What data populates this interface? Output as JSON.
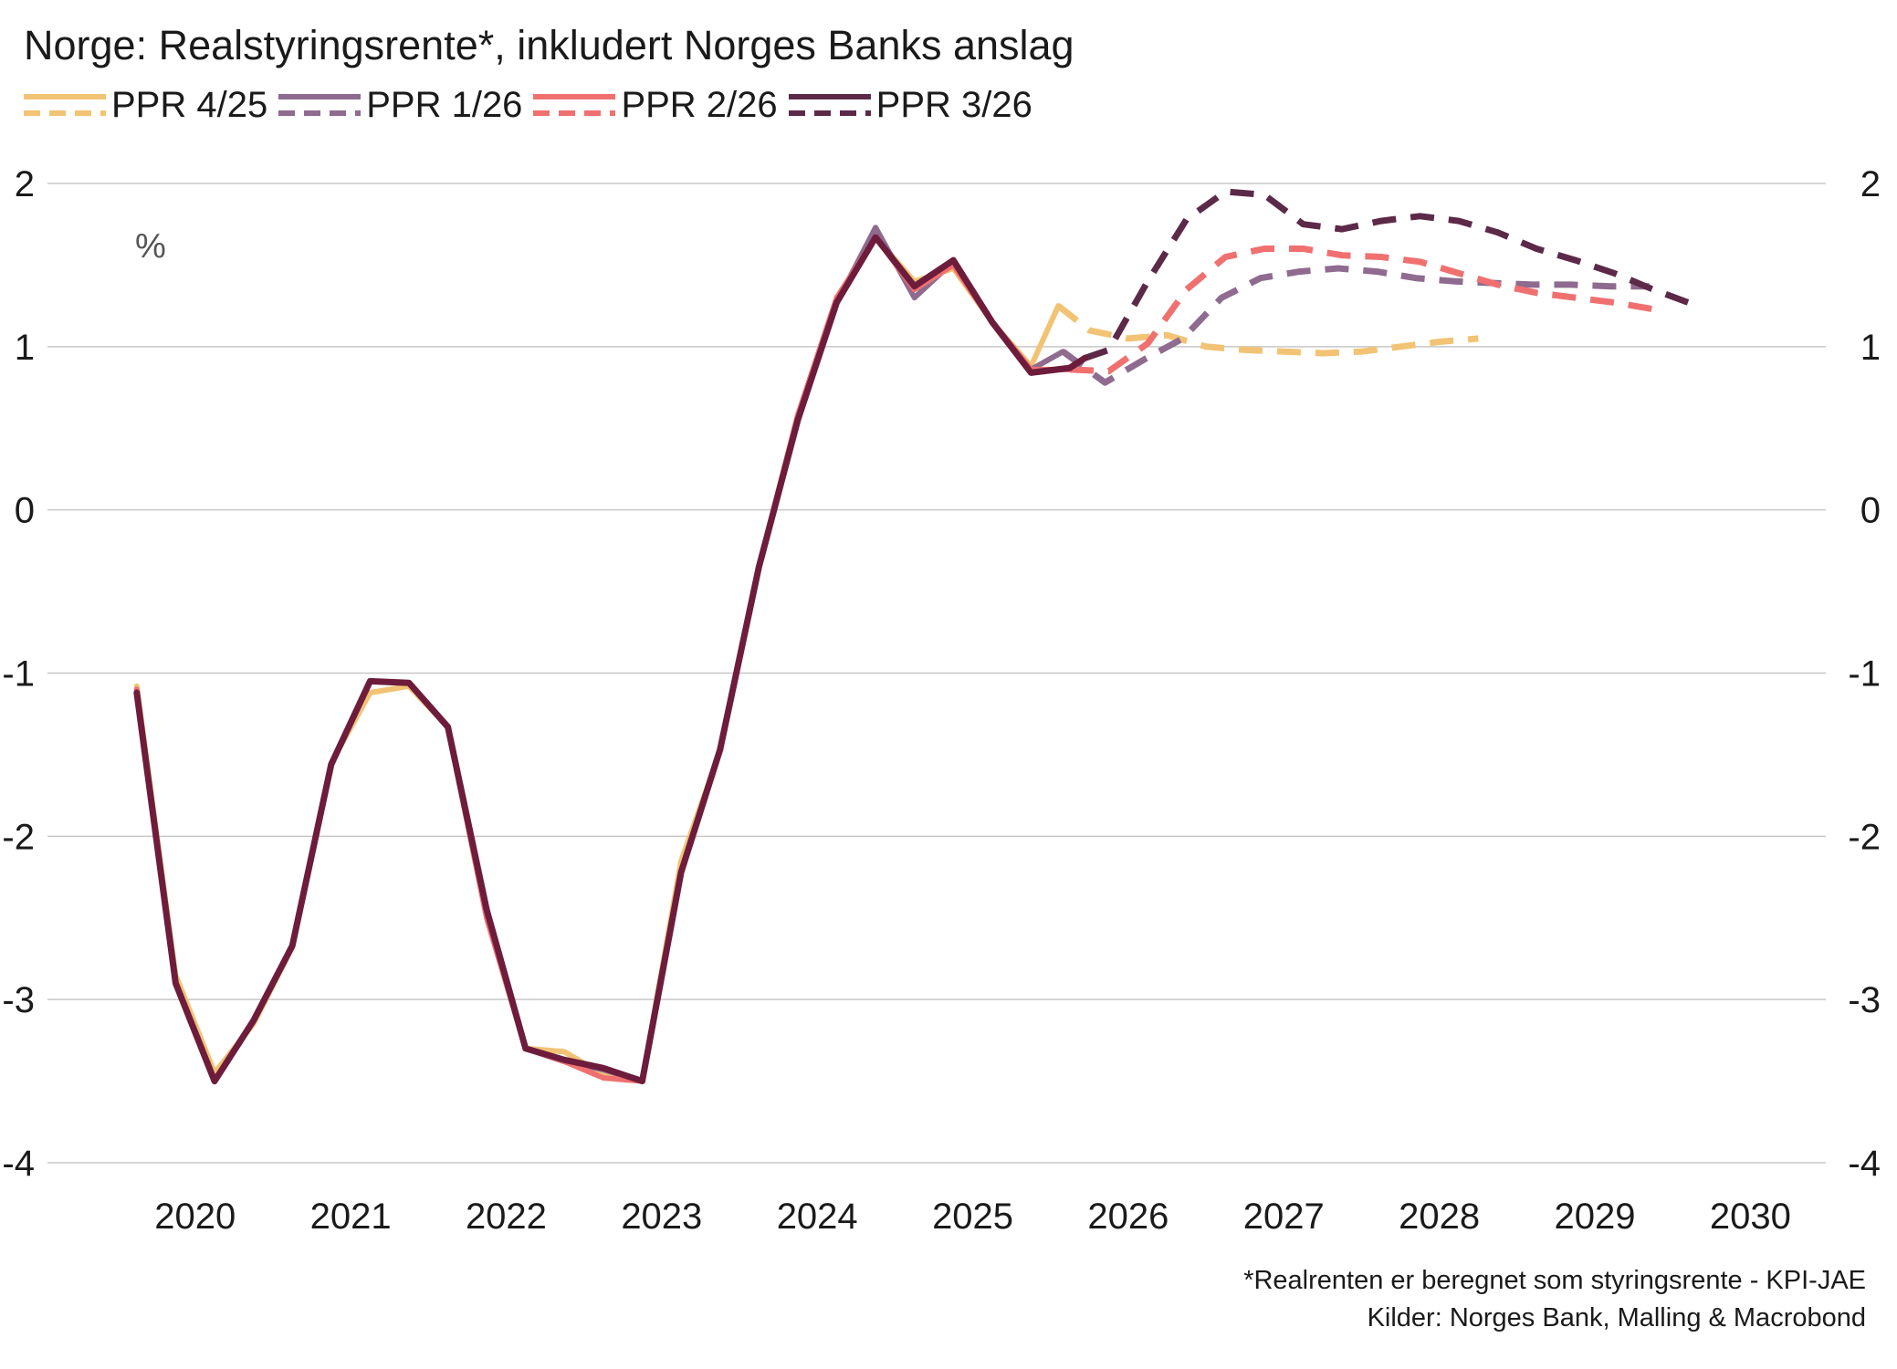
{
  "chart_data": {
    "type": "line",
    "title": "Norge: Realstyringsrente*, inkludert Norges Banks anslag",
    "unit_label": "%",
    "ylim": [
      -4,
      2
    ],
    "yticks": [
      "2",
      "1",
      "0",
      "-1",
      "-2",
      "-3",
      "-4"
    ],
    "ytick_values": [
      2,
      1,
      0,
      -1,
      -2,
      -3,
      -4
    ],
    "xlim": [
      2019.45,
      2030.25
    ],
    "xticks": [
      "2020",
      "2021",
      "2022",
      "2023",
      "2024",
      "2025",
      "2026",
      "2027",
      "2028",
      "2029",
      "2030"
    ],
    "xtick_values": [
      2020,
      2021,
      2022,
      2023,
      2024,
      2025,
      2026,
      2027,
      2028,
      2029,
      2030
    ],
    "grid": true,
    "legend_position": "top-left",
    "series": [
      {
        "name": "PPR 4/25",
        "color": "#F2C374",
        "actual": [
          [
            2019.625,
            -1.08
          ],
          [
            2019.875,
            -2.85
          ],
          [
            2020.125,
            -3.45
          ],
          [
            2020.375,
            -3.15
          ],
          [
            2020.625,
            -2.68
          ],
          [
            2020.875,
            -1.55
          ],
          [
            2021.125,
            -1.12
          ],
          [
            2021.375,
            -1.08
          ],
          [
            2021.625,
            -1.33
          ],
          [
            2021.875,
            -2.5
          ],
          [
            2022.125,
            -3.3
          ],
          [
            2022.375,
            -3.32
          ],
          [
            2022.625,
            -3.46
          ],
          [
            2022.875,
            -3.5
          ],
          [
            2023.125,
            -2.15
          ],
          [
            2023.375,
            -1.48
          ],
          [
            2023.625,
            -0.35
          ],
          [
            2023.875,
            0.58
          ],
          [
            2024.125,
            1.28
          ],
          [
            2024.375,
            1.67
          ],
          [
            2024.625,
            1.4
          ],
          [
            2024.875,
            1.48
          ],
          [
            2025.125,
            1.15
          ],
          [
            2025.375,
            0.88
          ],
          [
            2025.55,
            1.25
          ]
        ],
        "forecast": [
          [
            2025.55,
            1.25
          ],
          [
            2025.75,
            1.1
          ],
          [
            2026.0,
            1.05
          ],
          [
            2026.25,
            1.07
          ],
          [
            2026.5,
            1.0
          ],
          [
            2026.75,
            0.98
          ],
          [
            2027.0,
            0.97
          ],
          [
            2027.25,
            0.96
          ],
          [
            2027.5,
            0.97
          ],
          [
            2027.75,
            1.0
          ],
          [
            2028.0,
            1.03
          ],
          [
            2028.25,
            1.05
          ]
        ]
      },
      {
        "name": "PPR 1/26",
        "color": "#8E6B8F",
        "actual": [
          [
            2019.625,
            -1.1
          ],
          [
            2019.875,
            -2.9
          ],
          [
            2020.125,
            -3.5
          ],
          [
            2020.375,
            -3.13
          ],
          [
            2020.625,
            -2.67
          ],
          [
            2020.875,
            -1.56
          ],
          [
            2021.125,
            -1.05
          ],
          [
            2021.375,
            -1.06
          ],
          [
            2021.625,
            -1.33
          ],
          [
            2021.875,
            -2.45
          ],
          [
            2022.125,
            -3.3
          ],
          [
            2022.375,
            -3.38
          ],
          [
            2022.625,
            -3.43
          ],
          [
            2022.875,
            -3.5
          ],
          [
            2023.125,
            -2.22
          ],
          [
            2023.375,
            -1.47
          ],
          [
            2023.625,
            -0.35
          ],
          [
            2023.875,
            0.55
          ],
          [
            2024.125,
            1.27
          ],
          [
            2024.375,
            1.73
          ],
          [
            2024.625,
            1.3
          ],
          [
            2024.875,
            1.52
          ],
          [
            2025.125,
            1.15
          ],
          [
            2025.375,
            0.86
          ],
          [
            2025.58,
            0.97
          ]
        ],
        "forecast": [
          [
            2025.58,
            0.97
          ],
          [
            2025.85,
            0.78
          ],
          [
            2026.1,
            0.92
          ],
          [
            2026.35,
            1.05
          ],
          [
            2026.6,
            1.3
          ],
          [
            2026.85,
            1.42
          ],
          [
            2027.1,
            1.46
          ],
          [
            2027.35,
            1.48
          ],
          [
            2027.6,
            1.46
          ],
          [
            2027.85,
            1.42
          ],
          [
            2028.1,
            1.4
          ],
          [
            2028.35,
            1.39
          ],
          [
            2028.6,
            1.38
          ],
          [
            2028.85,
            1.38
          ],
          [
            2029.1,
            1.37
          ],
          [
            2029.35,
            1.37
          ]
        ]
      },
      {
        "name": "PPR 2/26",
        "color": "#F07070",
        "actual": [
          [
            2019.625,
            -1.1
          ],
          [
            2019.875,
            -2.9
          ],
          [
            2020.125,
            -3.5
          ],
          [
            2020.375,
            -3.13
          ],
          [
            2020.625,
            -2.67
          ],
          [
            2020.875,
            -1.56
          ],
          [
            2021.125,
            -1.05
          ],
          [
            2021.375,
            -1.06
          ],
          [
            2021.625,
            -1.33
          ],
          [
            2021.875,
            -2.5
          ],
          [
            2022.125,
            -3.3
          ],
          [
            2022.375,
            -3.38
          ],
          [
            2022.625,
            -3.48
          ],
          [
            2022.875,
            -3.5
          ],
          [
            2023.125,
            -2.22
          ],
          [
            2023.375,
            -1.47
          ],
          [
            2023.625,
            -0.35
          ],
          [
            2023.875,
            0.58
          ],
          [
            2024.125,
            1.3
          ],
          [
            2024.375,
            1.67
          ],
          [
            2024.625,
            1.35
          ],
          [
            2024.875,
            1.5
          ],
          [
            2025.125,
            1.15
          ],
          [
            2025.375,
            0.86
          ],
          [
            2025.625,
            0.86
          ]
        ],
        "forecast": [
          [
            2025.625,
            0.86
          ],
          [
            2025.875,
            0.85
          ],
          [
            2026.125,
            1.02
          ],
          [
            2026.375,
            1.35
          ],
          [
            2026.625,
            1.55
          ],
          [
            2026.875,
            1.6
          ],
          [
            2027.125,
            1.6
          ],
          [
            2027.375,
            1.56
          ],
          [
            2027.625,
            1.55
          ],
          [
            2027.875,
            1.52
          ],
          [
            2028.125,
            1.45
          ],
          [
            2028.375,
            1.38
          ],
          [
            2028.625,
            1.33
          ],
          [
            2028.875,
            1.3
          ],
          [
            2029.125,
            1.27
          ],
          [
            2029.375,
            1.23
          ]
        ]
      },
      {
        "name": "PPR 3/26",
        "color": "#5C2A48",
        "actual_color": "#6E1C3C",
        "actual": [
          [
            2019.625,
            -1.12
          ],
          [
            2019.875,
            -2.9
          ],
          [
            2020.125,
            -3.5
          ],
          [
            2020.375,
            -3.13
          ],
          [
            2020.625,
            -2.67
          ],
          [
            2020.875,
            -1.56
          ],
          [
            2021.125,
            -1.05
          ],
          [
            2021.375,
            -1.06
          ],
          [
            2021.625,
            -1.33
          ],
          [
            2021.875,
            -2.45
          ],
          [
            2022.125,
            -3.3
          ],
          [
            2022.375,
            -3.37
          ],
          [
            2022.625,
            -3.42
          ],
          [
            2022.875,
            -3.5
          ],
          [
            2023.125,
            -2.22
          ],
          [
            2023.375,
            -1.47
          ],
          [
            2023.625,
            -0.35
          ],
          [
            2023.875,
            0.55
          ],
          [
            2024.125,
            1.27
          ],
          [
            2024.375,
            1.67
          ],
          [
            2024.625,
            1.37
          ],
          [
            2024.875,
            1.53
          ],
          [
            2025.125,
            1.15
          ],
          [
            2025.375,
            0.84
          ],
          [
            2025.625,
            0.87
          ],
          [
            2025.72,
            0.93
          ]
        ],
        "forecast": [
          [
            2025.72,
            0.93
          ],
          [
            2025.875,
            0.98
          ],
          [
            2026.125,
            1.4
          ],
          [
            2026.375,
            1.78
          ],
          [
            2026.625,
            1.95
          ],
          [
            2026.875,
            1.93
          ],
          [
            2027.125,
            1.75
          ],
          [
            2027.375,
            1.72
          ],
          [
            2027.625,
            1.77
          ],
          [
            2027.875,
            1.8
          ],
          [
            2028.125,
            1.77
          ],
          [
            2028.375,
            1.7
          ],
          [
            2028.625,
            1.6
          ],
          [
            2028.875,
            1.53
          ],
          [
            2029.125,
            1.45
          ],
          [
            2029.375,
            1.35
          ],
          [
            2029.6,
            1.27
          ]
        ]
      }
    ],
    "footnote": "*Realrenten er beregnet som styringsrente - KPI-JAE",
    "source": "Kilder: Norges Bank, Malling & Macrobond"
  }
}
